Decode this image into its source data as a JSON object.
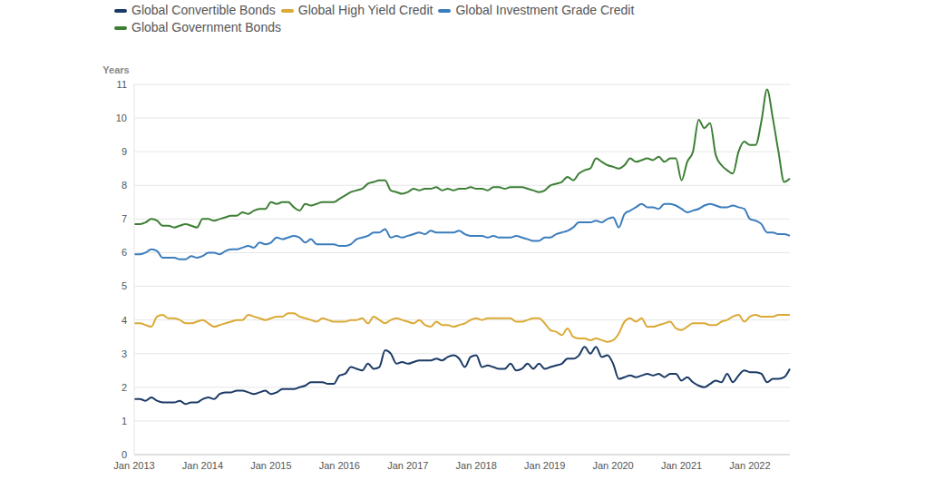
{
  "chart_data": {
    "type": "line",
    "ylabel": "Years",
    "categories": [
      "Jan 2013",
      null,
      null,
      null,
      null,
      null,
      null,
      null,
      null,
      null,
      null,
      null,
      "Jan 2014",
      null,
      null,
      null,
      null,
      null,
      null,
      null,
      null,
      null,
      null,
      null,
      "Jan 2015",
      null,
      null,
      null,
      null,
      null,
      null,
      null,
      null,
      null,
      null,
      null,
      "Jan 2016",
      null,
      null,
      null,
      null,
      null,
      null,
      null,
      null,
      null,
      null,
      null,
      "Jan 2017",
      null,
      null,
      null,
      null,
      null,
      null,
      null,
      null,
      null,
      null,
      null,
      "Jan 2018",
      null,
      null,
      null,
      null,
      null,
      null,
      null,
      null,
      null,
      null,
      null,
      "Jan 2019",
      null,
      null,
      null,
      null,
      null,
      null,
      null,
      null,
      null,
      null,
      null,
      "Jan 2020",
      null,
      null,
      null,
      null,
      null,
      null,
      null,
      null,
      null,
      null,
      null,
      "Jan 2021",
      null,
      null,
      null,
      null,
      null,
      null,
      null,
      null,
      null,
      null,
      null,
      "Jan 2022",
      null,
      null,
      null,
      null,
      null,
      null,
      null
    ],
    "series": [
      {
        "name": "Global Convertible Bonds",
        "color": "#1b3a66",
        "values": [
          1.65,
          1.65,
          1.6,
          1.7,
          1.6,
          1.55,
          1.55,
          1.55,
          1.6,
          1.5,
          1.55,
          1.55,
          1.65,
          1.7,
          1.65,
          1.8,
          1.85,
          1.85,
          1.9,
          1.9,
          1.85,
          1.8,
          1.85,
          1.9,
          1.8,
          1.85,
          1.95,
          1.95,
          1.95,
          2.0,
          2.05,
          2.15,
          2.15,
          2.15,
          2.1,
          2.1,
          2.35,
          2.4,
          2.6,
          2.55,
          2.5,
          2.7,
          2.55,
          2.6,
          3.1,
          3.0,
          2.7,
          2.75,
          2.7,
          2.75,
          2.8,
          2.8,
          2.8,
          2.85,
          2.8,
          2.9,
          2.95,
          2.85,
          2.6,
          2.9,
          2.95,
          2.6,
          2.65,
          2.6,
          2.55,
          2.55,
          2.7,
          2.5,
          2.55,
          2.7,
          2.55,
          2.7,
          2.55,
          2.6,
          2.65,
          2.7,
          2.85,
          2.85,
          2.95,
          3.2,
          3.0,
          3.2,
          2.9,
          2.95,
          2.7,
          2.25,
          2.3,
          2.35,
          2.3,
          2.35,
          2.4,
          2.35,
          2.4,
          2.3,
          2.4,
          2.4,
          2.2,
          2.3,
          2.15,
          2.05,
          2.0,
          2.1,
          2.2,
          2.15,
          2.4,
          2.15,
          2.35,
          2.5,
          2.45,
          2.45,
          2.4,
          2.15,
          2.25,
          2.25,
          2.3,
          2.55
        ]
      },
      {
        "name": "Global High Yield Credit",
        "color": "#dba935",
        "values": [
          3.9,
          3.9,
          3.85,
          3.8,
          4.1,
          4.15,
          4.05,
          4.05,
          4.0,
          3.9,
          3.9,
          3.95,
          4.0,
          3.9,
          3.8,
          3.85,
          3.9,
          3.95,
          4.0,
          4.0,
          4.15,
          4.1,
          4.05,
          4.0,
          4.05,
          4.1,
          4.1,
          4.2,
          4.2,
          4.1,
          4.05,
          4.0,
          3.95,
          4.05,
          4.0,
          3.95,
          3.95,
          3.95,
          4.0,
          4.0,
          4.05,
          3.9,
          4.1,
          4.0,
          3.9,
          4.0,
          4.05,
          4.0,
          3.95,
          3.9,
          4.0,
          3.85,
          3.8,
          3.95,
          3.85,
          3.85,
          3.8,
          3.85,
          3.9,
          4.0,
          4.05,
          4.0,
          4.05,
          4.05,
          4.05,
          4.05,
          4.05,
          3.95,
          3.95,
          4.0,
          4.05,
          4.05,
          3.9,
          3.7,
          3.65,
          3.55,
          3.75,
          3.5,
          3.45,
          3.45,
          3.4,
          3.45,
          3.4,
          3.35,
          3.4,
          3.6,
          3.95,
          4.05,
          3.95,
          4.05,
          3.8,
          3.8,
          3.85,
          3.9,
          3.95,
          3.75,
          3.7,
          3.8,
          3.9,
          3.9,
          3.9,
          3.85,
          3.85,
          3.95,
          4.0,
          4.1,
          4.15,
          3.95,
          4.1,
          4.15,
          4.1,
          4.1,
          4.1,
          4.15,
          4.15,
          4.15
        ]
      },
      {
        "name": "Global Investment Grade Credit",
        "color": "#3b7dbd",
        "values": [
          5.95,
          5.95,
          6.0,
          6.1,
          6.05,
          5.85,
          5.85,
          5.85,
          5.8,
          5.8,
          5.9,
          5.85,
          5.9,
          6.0,
          6.0,
          5.95,
          6.05,
          6.1,
          6.1,
          6.15,
          6.2,
          6.15,
          6.3,
          6.25,
          6.3,
          6.45,
          6.4,
          6.45,
          6.5,
          6.45,
          6.3,
          6.4,
          6.25,
          6.25,
          6.25,
          6.25,
          6.2,
          6.2,
          6.25,
          6.4,
          6.45,
          6.5,
          6.6,
          6.6,
          6.7,
          6.45,
          6.5,
          6.45,
          6.5,
          6.55,
          6.6,
          6.55,
          6.65,
          6.6,
          6.6,
          6.6,
          6.6,
          6.65,
          6.55,
          6.5,
          6.5,
          6.5,
          6.45,
          6.5,
          6.45,
          6.45,
          6.45,
          6.5,
          6.45,
          6.4,
          6.35,
          6.35,
          6.45,
          6.45,
          6.55,
          6.6,
          6.65,
          6.75,
          6.9,
          6.9,
          6.9,
          6.95,
          6.9,
          7.0,
          7.05,
          6.75,
          7.15,
          7.25,
          7.35,
          7.45,
          7.35,
          7.35,
          7.3,
          7.45,
          7.45,
          7.4,
          7.3,
          7.2,
          7.25,
          7.3,
          7.4,
          7.45,
          7.4,
          7.35,
          7.35,
          7.4,
          7.35,
          7.3,
          7.0,
          6.95,
          6.85,
          6.6,
          6.6,
          6.55,
          6.55,
          6.5
        ]
      },
      {
        "name": "Global Government Bonds",
        "color": "#3d7f35",
        "values": [
          6.85,
          6.85,
          6.9,
          7.0,
          6.95,
          6.8,
          6.8,
          6.75,
          6.8,
          6.85,
          6.8,
          6.75,
          7.0,
          7.0,
          6.95,
          7.0,
          7.05,
          7.1,
          7.1,
          7.2,
          7.15,
          7.25,
          7.3,
          7.3,
          7.5,
          7.45,
          7.5,
          7.5,
          7.35,
          7.25,
          7.45,
          7.4,
          7.45,
          7.5,
          7.5,
          7.5,
          7.6,
          7.7,
          7.8,
          7.85,
          7.9,
          8.05,
          8.1,
          8.15,
          8.15,
          7.85,
          7.8,
          7.75,
          7.8,
          7.9,
          7.85,
          7.9,
          7.9,
          7.95,
          7.85,
          7.9,
          7.85,
          7.9,
          7.9,
          7.95,
          7.9,
          7.9,
          7.85,
          7.95,
          7.95,
          7.9,
          7.95,
          7.95,
          7.95,
          7.9,
          7.85,
          7.8,
          7.85,
          8.0,
          8.05,
          8.1,
          8.25,
          8.15,
          8.35,
          8.45,
          8.5,
          8.8,
          8.7,
          8.6,
          8.55,
          8.5,
          8.6,
          8.8,
          8.7,
          8.75,
          8.8,
          8.75,
          8.85,
          8.7,
          8.8,
          8.8,
          8.15,
          8.7,
          9.0,
          9.95,
          9.7,
          9.85,
          8.9,
          8.6,
          8.45,
          8.35,
          9.0,
          9.3,
          9.2,
          9.2,
          9.9,
          10.85,
          10.0,
          9.0,
          8.1,
          8.2
        ]
      }
    ],
    "ylim": [
      0,
      11
    ],
    "yticks": [
      0,
      1,
      2,
      3,
      4,
      5,
      6,
      7,
      8,
      9,
      10,
      11
    ],
    "grid": true,
    "legend": "top-left"
  }
}
